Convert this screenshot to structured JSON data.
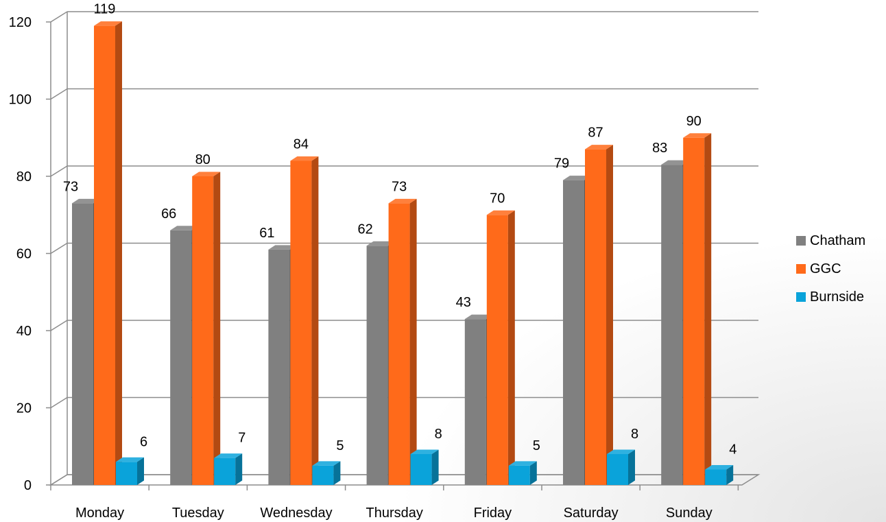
{
  "chart_data": {
    "type": "bar",
    "categories": [
      "Monday",
      "Tuesday",
      "Wednesday",
      "Thursday",
      "Friday",
      "Saturday",
      "Sunday"
    ],
    "series": [
      {
        "name": "Chatham",
        "values": [
          73,
          66,
          61,
          62,
          43,
          79,
          83
        ],
        "color": "#808080"
      },
      {
        "name": "GGC",
        "values": [
          119,
          80,
          84,
          73,
          70,
          87,
          90
        ],
        "color": "#ff6a1a"
      },
      {
        "name": "Burnside",
        "values": [
          6,
          7,
          5,
          8,
          5,
          8,
          4
        ],
        "color": "#0aa3da"
      }
    ],
    "ylim": [
      0,
      120
    ],
    "yticks": [
      0,
      20,
      40,
      60,
      80,
      100,
      120
    ],
    "grid": true,
    "style": "3d-clustered-column",
    "legend_position": "right",
    "title": "",
    "xlabel": "",
    "ylabel": ""
  }
}
